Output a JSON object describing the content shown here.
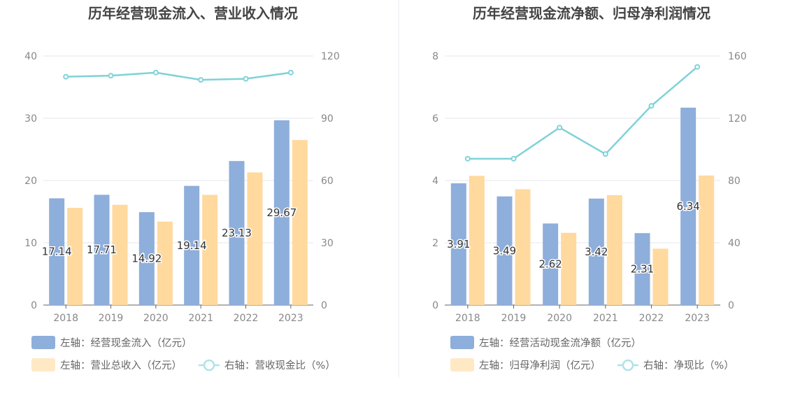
{
  "colors": {
    "bar_primary": "#8eaedb",
    "bar_secondary": "#ffd99e",
    "line": "#7fd2d8",
    "legend_secondary_swatch": "#ffe9c5",
    "legend_line": "#aee3e8",
    "grid": "#e3e7ef",
    "axis": "#666666",
    "tick_text": "#888888",
    "title_text": "#444444",
    "legend_text": "#666666",
    "divider": "#e8ebf0"
  },
  "chart_data": [
    {
      "type": "bar",
      "title": "历年经营现金流入、营业收入情况",
      "categories": [
        "2018",
        "2019",
        "2020",
        "2021",
        "2022",
        "2023"
      ],
      "ylim_left": [
        0,
        40
      ],
      "yticks_left": [
        0,
        10,
        20,
        30,
        40
      ],
      "ylim_right": [
        0,
        120
      ],
      "yticks_right": [
        0,
        30,
        60,
        90,
        120
      ],
      "grid": true,
      "legend_position": "bottom-left",
      "series": [
        {
          "name": "左轴：经营现金流入（亿元）",
          "kind": "bar",
          "axis": "left",
          "values": [
            17.14,
            17.71,
            14.92,
            19.14,
            23.13,
            29.67
          ],
          "labels": [
            "17.14",
            "17.71",
            "14.92",
            "19.14",
            "23.13",
            "29.67"
          ]
        },
        {
          "name": "左轴：营业总收入（亿元）",
          "kind": "bar",
          "axis": "left",
          "values": [
            15.6,
            16.1,
            13.4,
            17.7,
            21.3,
            26.5
          ]
        },
        {
          "name": "右轴：营收现金比（%）",
          "kind": "line",
          "axis": "right",
          "values": [
            110,
            110.5,
            112,
            108.5,
            109,
            112
          ]
        }
      ]
    },
    {
      "type": "bar",
      "title": "历年经营现金流净额、归母净利润情况",
      "categories": [
        "2018",
        "2019",
        "2020",
        "2021",
        "2022",
        "2023"
      ],
      "ylim_left": [
        0,
        8
      ],
      "yticks_left": [
        0,
        2,
        4,
        6,
        8
      ],
      "ylim_right": [
        0,
        160
      ],
      "yticks_right": [
        0,
        40,
        80,
        120,
        160
      ],
      "grid": true,
      "legend_position": "bottom-left",
      "series": [
        {
          "name": "左轴：经营活动现金流净额（亿元）",
          "kind": "bar",
          "axis": "left",
          "values": [
            3.91,
            3.49,
            2.62,
            3.42,
            2.31,
            6.34
          ],
          "labels": [
            "3.91",
            "3.49",
            "2.62",
            "3.42",
            "2.31",
            "6.34"
          ]
        },
        {
          "name": "左轴：归母净利润（亿元）",
          "kind": "bar",
          "axis": "left",
          "values": [
            4.15,
            3.72,
            2.32,
            3.53,
            1.81,
            4.16
          ]
        },
        {
          "name": "右轴：净现比（%）",
          "kind": "line",
          "axis": "right",
          "values": [
            94,
            94,
            114,
            97,
            128,
            153
          ]
        }
      ]
    }
  ]
}
